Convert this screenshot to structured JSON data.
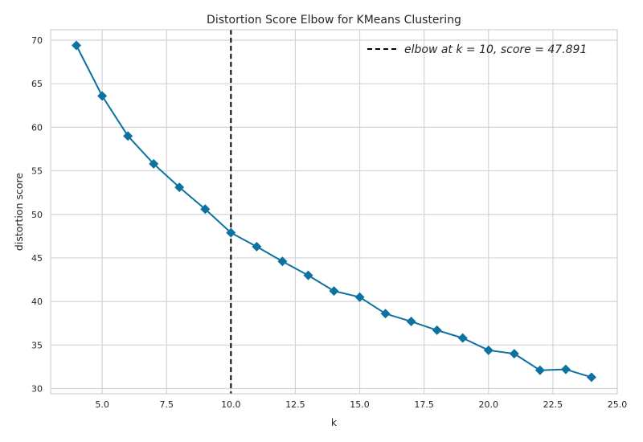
{
  "chart_data": {
    "type": "line",
    "title": "Distortion Score Elbow for KMeans Clustering",
    "xlabel": "k",
    "ylabel": "distortion score",
    "xlim": [
      3.0,
      25.0
    ],
    "ylim": [
      29.4,
      71.2
    ],
    "xticks": [
      "5.0",
      "7.5",
      "10.0",
      "12.5",
      "15.0",
      "17.5",
      "20.0",
      "22.5",
      "25.0"
    ],
    "yticks": [
      "30",
      "35",
      "40",
      "45",
      "50",
      "55",
      "60",
      "65",
      "70"
    ],
    "grid": true,
    "legend_position": "top-right",
    "series": [
      {
        "x": [
          4,
          5,
          6,
          7,
          8,
          9,
          10,
          11,
          12,
          13,
          14,
          15,
          16,
          17,
          18,
          19,
          20,
          21,
          22,
          23,
          24
        ],
        "values": [
          69.4,
          63.6,
          59.0,
          55.8,
          53.1,
          50.6,
          47.891,
          46.3,
          44.6,
          43.0,
          41.2,
          40.5,
          38.6,
          37.7,
          36.7,
          35.8,
          34.4,
          34.0,
          32.1,
          32.2,
          31.3
        ],
        "color": "#0e72a0",
        "marker": "diamond"
      }
    ],
    "elbow": {
      "k": 10,
      "legend": "elbow at k = 10, score = 47.891",
      "color": "#000000",
      "style": "dashed"
    },
    "colors": {
      "grid": "#d4d4d4",
      "frame": "#c8c8c8",
      "text": "#262626"
    }
  }
}
